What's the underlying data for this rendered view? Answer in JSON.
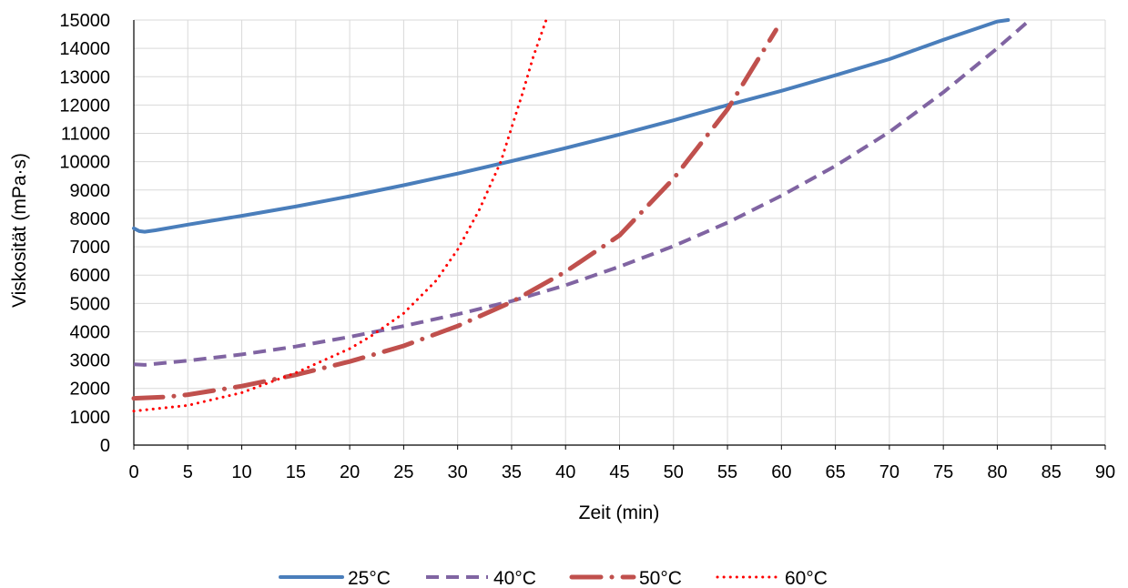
{
  "chart_data": {
    "type": "line",
    "title": "",
    "xlabel": "Zeit (min)",
    "ylabel": "Viskosität (mPa·s)",
    "xlim": [
      0,
      90
    ],
    "ylim": [
      0,
      15000
    ],
    "xticks": [
      0,
      5,
      10,
      15,
      20,
      25,
      30,
      35,
      40,
      45,
      50,
      55,
      60,
      65,
      70,
      75,
      80,
      85,
      90
    ],
    "yticks": [
      0,
      1000,
      2000,
      3000,
      4000,
      5000,
      6000,
      7000,
      8000,
      9000,
      10000,
      11000,
      12000,
      13000,
      14000,
      15000
    ],
    "grid": true,
    "legend_position": "bottom",
    "series": [
      {
        "name": "25°C",
        "color": "#4a7ebb",
        "style": "solid",
        "x": [
          0,
          0.5,
          1,
          2,
          5,
          10,
          15,
          20,
          25,
          30,
          35,
          40,
          45,
          50,
          55,
          60,
          65,
          70,
          75,
          80,
          81
        ],
        "y": [
          7650,
          7550,
          7530,
          7580,
          7780,
          8090,
          8420,
          8780,
          9170,
          9580,
          10020,
          10480,
          10960,
          11460,
          12000,
          12500,
          13050,
          13620,
          14300,
          14950,
          15000
        ]
      },
      {
        "name": "40°C",
        "color": "#8064a2",
        "style": "dashed",
        "x": [
          0,
          1,
          5,
          10,
          15,
          20,
          25,
          30,
          35,
          40,
          45,
          50,
          55,
          60,
          65,
          70,
          75,
          80,
          83
        ],
        "y": [
          2850,
          2830,
          2980,
          3200,
          3480,
          3820,
          4200,
          4620,
          5080,
          5640,
          6300,
          7020,
          7850,
          8800,
          9850,
          11050,
          12450,
          14000,
          15000
        ]
      },
      {
        "name": "50°C",
        "color": "#c0504d",
        "style": "dash-dot",
        "x": [
          0,
          3,
          5,
          10,
          15,
          20,
          25,
          30,
          35,
          40,
          45,
          50,
          55,
          59.5
        ],
        "y": [
          1650,
          1700,
          1780,
          2080,
          2480,
          2950,
          3500,
          4200,
          5050,
          6120,
          7400,
          9400,
          11850,
          14650
        ]
      },
      {
        "name": "60°C",
        "color": "#ff0000",
        "style": "dotted",
        "x": [
          0,
          5,
          10,
          15,
          20,
          22,
          25,
          28,
          30,
          32,
          34,
          35,
          36,
          37,
          38.2
        ],
        "y": [
          1200,
          1400,
          1850,
          2550,
          3400,
          3850,
          4650,
          5800,
          6900,
          8300,
          10000,
          11200,
          12400,
          13700,
          15000
        ]
      }
    ]
  }
}
